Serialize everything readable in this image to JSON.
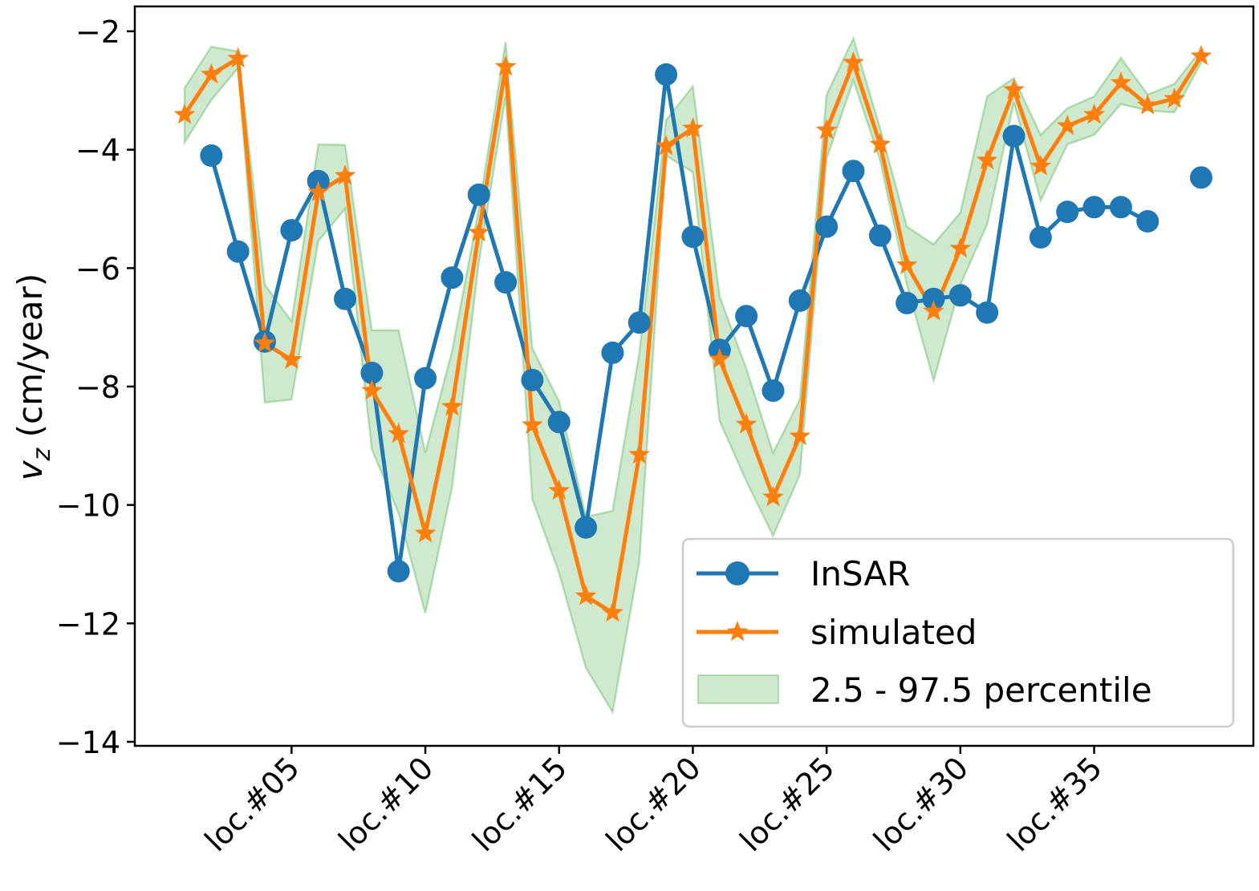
{
  "chart_data": {
    "type": "line",
    "title": "",
    "xlabel": "",
    "ylabel": "v_z (cm/year)",
    "ylabel_main": "v",
    "ylabel_sub": "z",
    "ylabel_unit": " (cm/year)",
    "ylim": [
      -14,
      -2
    ],
    "yticks": [
      -14,
      -12,
      -10,
      -8,
      -6,
      -4,
      -2
    ],
    "ytick_labels": [
      "−14",
      "−12",
      "−10",
      "−8",
      "−6",
      "−4",
      "−2"
    ],
    "x": [
      1,
      2,
      3,
      4,
      5,
      6,
      7,
      8,
      9,
      10,
      11,
      12,
      13,
      14,
      15,
      16,
      17,
      18,
      19,
      20,
      21,
      22,
      23,
      24,
      25,
      26,
      27,
      28,
      29,
      30,
      31,
      32,
      33,
      34,
      35,
      36,
      37,
      38,
      39
    ],
    "xticks": [
      5,
      10,
      15,
      20,
      25,
      30,
      35
    ],
    "xtick_labels": [
      "loc.#05",
      "loc.#10",
      "loc.#15",
      "loc.#20",
      "loc.#25",
      "loc.#30",
      "loc.#35"
    ],
    "grid": false,
    "legend_position": "lower-right",
    "series": [
      {
        "name": "InSAR",
        "color": "#1f77b4",
        "marker": "circle",
        "values": [
          null,
          -4.1,
          -5.72,
          -7.24,
          -5.36,
          -4.53,
          -6.52,
          -7.77,
          -11.12,
          -7.86,
          -6.16,
          -4.76,
          -6.24,
          -7.89,
          -8.6,
          -10.38,
          -7.43,
          -6.92,
          -2.73,
          -5.47,
          -7.38,
          -6.81,
          -8.07,
          -6.55,
          -5.3,
          -4.36,
          -5.45,
          -6.59,
          -6.52,
          -6.46,
          -6.75,
          -3.77,
          -5.48,
          -5.05,
          -4.97,
          -4.97,
          -5.21,
          null,
          -4.47
        ]
      },
      {
        "name": "simulated",
        "color": "#ff7f0e",
        "marker": "star",
        "values": [
          -3.41,
          -2.73,
          -2.46,
          -7.27,
          -7.55,
          -4.72,
          -4.44,
          -8.07,
          -8.8,
          -10.48,
          -8.34,
          -5.4,
          -2.6,
          -8.65,
          -9.76,
          -11.54,
          -11.82,
          -9.15,
          -3.94,
          -3.64,
          -7.54,
          -8.64,
          -9.87,
          -8.84,
          -3.67,
          -2.53,
          -3.91,
          -5.95,
          -6.73,
          -5.67,
          -4.18,
          -2.99,
          -4.28,
          -3.6,
          -3.41,
          -2.87,
          -3.25,
          -3.14,
          -2.42
        ]
      }
    ],
    "band": {
      "name": "2.5 - 97.5 percentile",
      "color": "#2ca02c",
      "lower": [
        -3.88,
        -3.16,
        -2.62,
        -8.27,
        -8.22,
        -5.54,
        -5.0,
        -9.06,
        -10.14,
        -11.83,
        -9.7,
        -5.9,
        -3.1,
        -9.9,
        -11.15,
        -12.75,
        -13.5,
        -10.95,
        -4.1,
        -4.38,
        -8.58,
        -9.6,
        -10.52,
        -9.49,
        -4.15,
        -2.83,
        -4.18,
        -6.28,
        -7.9,
        -6.28,
        -5.26,
        -3.2,
        -4.86,
        -3.91,
        -3.75,
        -3.23,
        -3.34,
        -3.37,
        -2.53
      ],
      "upper": [
        -2.96,
        -2.26,
        -2.34,
        -6.28,
        -6.9,
        -3.91,
        -3.92,
        -7.05,
        -7.05,
        -9.12,
        -7.4,
        -5.0,
        -2.18,
        -7.36,
        -8.25,
        -10.2,
        -10.1,
        -7.43,
        -3.5,
        -2.93,
        -6.48,
        -7.7,
        -9.12,
        -8.22,
        -3.07,
        -2.12,
        -3.64,
        -5.3,
        -5.6,
        -5.06,
        -3.1,
        -2.79,
        -3.75,
        -3.3,
        -3.1,
        -2.45,
        -3.07,
        -2.89,
        -2.31
      ]
    }
  }
}
